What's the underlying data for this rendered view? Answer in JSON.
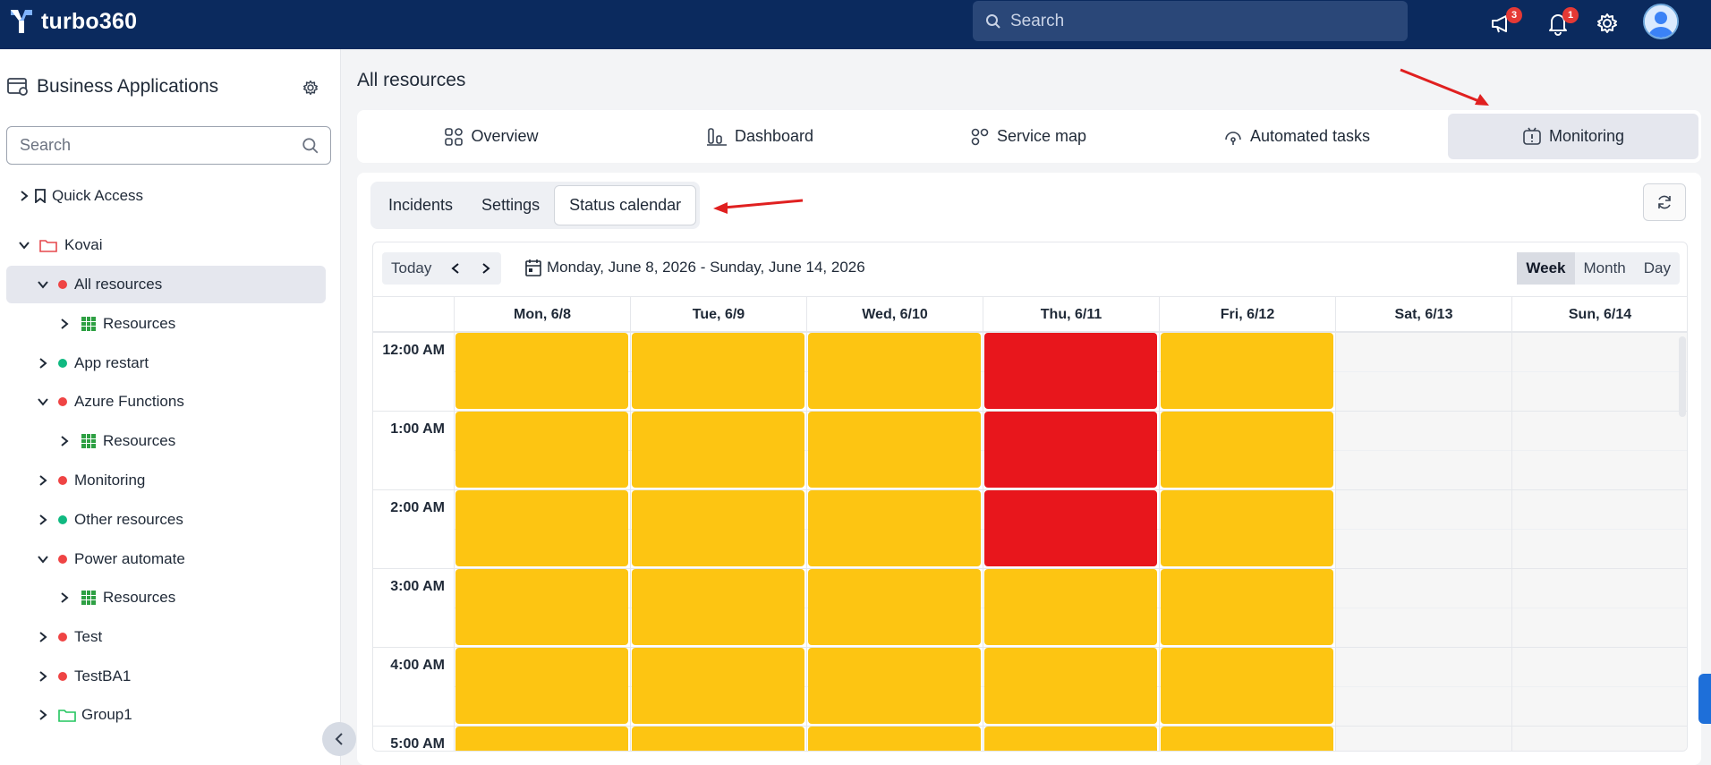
{
  "app": {
    "name": "turbo360"
  },
  "topbar": {
    "search_placeholder": "Search",
    "announcements_count": "3",
    "notifications_count": "1",
    "icons": [
      "megaphone-icon",
      "bell-icon",
      "gear-icon",
      "user-avatar"
    ]
  },
  "sidebar": {
    "title": "Business Applications",
    "search_placeholder": "Search",
    "items": [
      {
        "label": "Quick Access",
        "icon": "bookmark-icon",
        "chevron": "right"
      },
      {
        "label": "Kovai",
        "icon": "folder-icon",
        "chevron": "down"
      },
      {
        "label": "All resources",
        "status": "red",
        "chevron": "down",
        "selected": true
      },
      {
        "label": "Resources",
        "icon": "grid-icon",
        "chevron": "right"
      },
      {
        "label": "App restart",
        "status": "green",
        "chevron": "right"
      },
      {
        "label": "Azure Functions",
        "status": "red",
        "chevron": "down"
      },
      {
        "label": "Resources",
        "icon": "grid-icon",
        "chevron": "right"
      },
      {
        "label": "Monitoring",
        "status": "red",
        "chevron": "right"
      },
      {
        "label": "Other resources",
        "status": "green",
        "chevron": "right"
      },
      {
        "label": "Power automate",
        "status": "red",
        "chevron": "down"
      },
      {
        "label": "Resources",
        "icon": "grid-icon",
        "chevron": "right"
      },
      {
        "label": "Test",
        "status": "red",
        "chevron": "right"
      },
      {
        "label": "TestBA1",
        "status": "red",
        "chevron": "right"
      },
      {
        "label": "Group1",
        "icon": "folder-icon",
        "chevron": "right"
      }
    ]
  },
  "main": {
    "page_title": "All resources",
    "tabs": [
      {
        "label": "Overview",
        "icon": "overview-icon"
      },
      {
        "label": "Dashboard",
        "icon": "dashboard-icon"
      },
      {
        "label": "Service map",
        "icon": "service-map-icon"
      },
      {
        "label": "Automated tasks",
        "icon": "automated-tasks-icon"
      },
      {
        "label": "Monitoring",
        "icon": "monitoring-icon",
        "active": true
      }
    ],
    "subtabs": [
      {
        "label": "Incidents"
      },
      {
        "label": "Settings"
      },
      {
        "label": "Status calendar",
        "active": true
      }
    ]
  },
  "calendar": {
    "today_label": "Today",
    "range_label": "Monday, June 8, 2026 - Sunday, June 14, 2026",
    "views": [
      {
        "label": "Week",
        "active": true
      },
      {
        "label": "Month"
      },
      {
        "label": "Day"
      }
    ],
    "days": [
      "Mon, 6/8",
      "Tue, 6/9",
      "Wed, 6/10",
      "Thu, 6/11",
      "Fri, 6/12",
      "Sat, 6/13",
      "Sun, 6/14"
    ],
    "hours": [
      "12:00 AM",
      "1:00 AM",
      "2:00 AM",
      "3:00 AM",
      "4:00 AM",
      "5:00 AM"
    ],
    "status_colors": {
      "warning": "#fdc512",
      "error": "#e8161c"
    },
    "cells": [
      [
        "warning",
        "warning",
        "warning",
        "error",
        "warning",
        "",
        ""
      ],
      [
        "warning",
        "warning",
        "warning",
        "error",
        "warning",
        "",
        ""
      ],
      [
        "warning",
        "warning",
        "warning",
        "error",
        "warning",
        "",
        ""
      ],
      [
        "warning",
        "warning",
        "warning",
        "warning",
        "warning",
        "",
        ""
      ],
      [
        "warning",
        "warning",
        "warning",
        "warning",
        "warning",
        "",
        ""
      ],
      [
        "warning",
        "warning",
        "warning",
        "warning",
        "warning",
        "",
        ""
      ]
    ]
  },
  "annotations": {
    "arrow_color": "#e02020"
  }
}
